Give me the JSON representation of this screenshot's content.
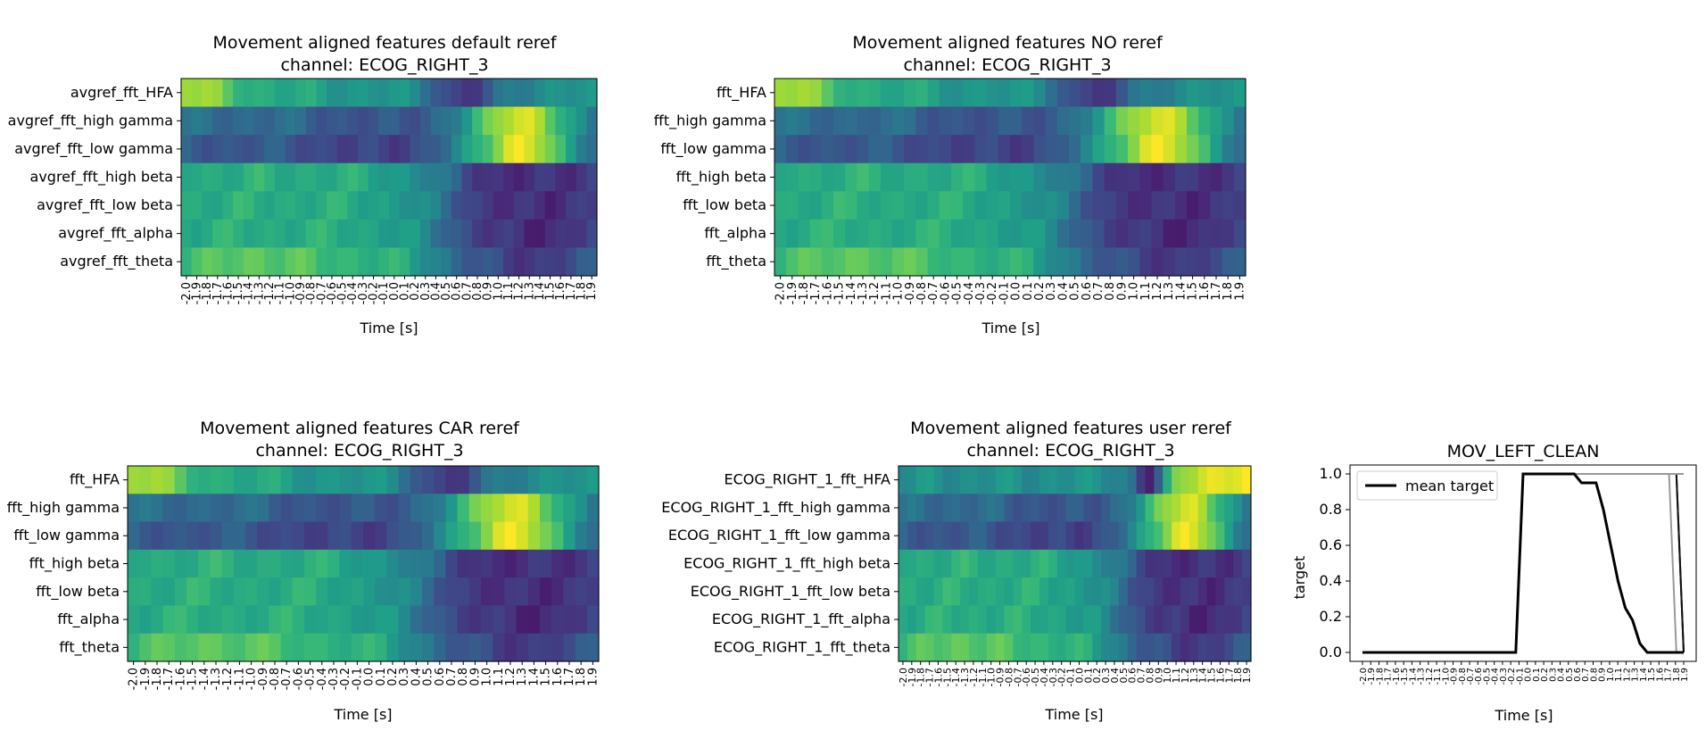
{
  "time_ticks": [
    "-2.0",
    "-1.9",
    "-1.8",
    "-1.7",
    "-1.6",
    "-1.5",
    "-1.4",
    "-1.3",
    "-1.2",
    "-1.1",
    "-1.0",
    "-0.9",
    "-0.8",
    "-0.7",
    "-0.6",
    "-0.5",
    "-0.4",
    "-0.3",
    "-0.2",
    "-0.1",
    "0.0",
    "0.1",
    "0.2",
    "0.3",
    "0.4",
    "0.5",
    "0.6",
    "0.7",
    "0.8",
    "0.9",
    "1.0",
    "1.1",
    "1.2",
    "1.3",
    "1.4",
    "1.5",
    "1.6",
    "1.7",
    "1.8",
    "1.9"
  ],
  "chart_data": [
    {
      "type": "heatmap",
      "title": "Movement aligned features default reref\nchannel: ECOG_RIGHT_3",
      "xlabel": "Time [s]",
      "ylabels": [
        "avgref_fft_HFA",
        "avgref_fft_high gamma",
        "avgref_fft_low gamma",
        "avgref_fft_high beta",
        "avgref_fft_low beta",
        "avgref_fft_alpha",
        "avgref_fft_theta"
      ],
      "colormap": "viridis"
    },
    {
      "type": "heatmap",
      "title": "Movement aligned features NO reref\nchannel: ECOG_RIGHT_3",
      "xlabel": "Time [s]",
      "ylabels": [
        "fft_HFA",
        "fft_high gamma",
        "fft_low gamma",
        "fft_high beta",
        "fft_low beta",
        "fft_alpha",
        "fft_theta"
      ],
      "colormap": "viridis"
    },
    {
      "type": "heatmap",
      "title": "Movement aligned features CAR reref\nchannel: ECOG_RIGHT_3",
      "xlabel": "Time [s]",
      "ylabels": [
        "fft_HFA",
        "fft_high gamma",
        "fft_low gamma",
        "fft_high beta",
        "fft_low beta",
        "fft_alpha",
        "fft_theta"
      ],
      "colormap": "viridis"
    },
    {
      "type": "heatmap",
      "title": "Movement aligned features user reref\nchannel: ECOG_RIGHT_3",
      "xlabel": "Time [s]",
      "ylabels": [
        "ECOG_RIGHT_1_fft_HFA",
        "ECOG_RIGHT_1_fft_high gamma",
        "ECOG_RIGHT_1_fft_low gamma",
        "ECOG_RIGHT_1_fft_high beta",
        "ECOG_RIGHT_1_fft_low beta",
        "ECOG_RIGHT_1_fft_alpha",
        "ECOG_RIGHT_1_fft_theta"
      ],
      "colormap": "viridis"
    },
    {
      "type": "line",
      "title": "MOV_LEFT_CLEAN",
      "xlabel": "Time [s]",
      "ylabel": "target",
      "ylim": [
        0.0,
        1.0
      ],
      "yticks": [
        "0.0",
        "0.2",
        "0.4",
        "0.6",
        "0.8",
        "1.0"
      ],
      "legend": {
        "label": "mean target",
        "placement": "top-left"
      },
      "trial_offsets": [
        1.0,
        1.05,
        1.15,
        1.2,
        1.3,
        1.35,
        1.5,
        0.95
      ],
      "mean_target": [
        0,
        0,
        0,
        0,
        0,
        0,
        0,
        0,
        0,
        0,
        0,
        0,
        0,
        0,
        0,
        0,
        0,
        0,
        0,
        0,
        0,
        0,
        1,
        1,
        1,
        1,
        1,
        1,
        1,
        1,
        0.95,
        0.95,
        0.95,
        0.8,
        0.6,
        0.4,
        0.25,
        0.18,
        0.05,
        0,
        0,
        0,
        0,
        0,
        0
      ]
    }
  ]
}
